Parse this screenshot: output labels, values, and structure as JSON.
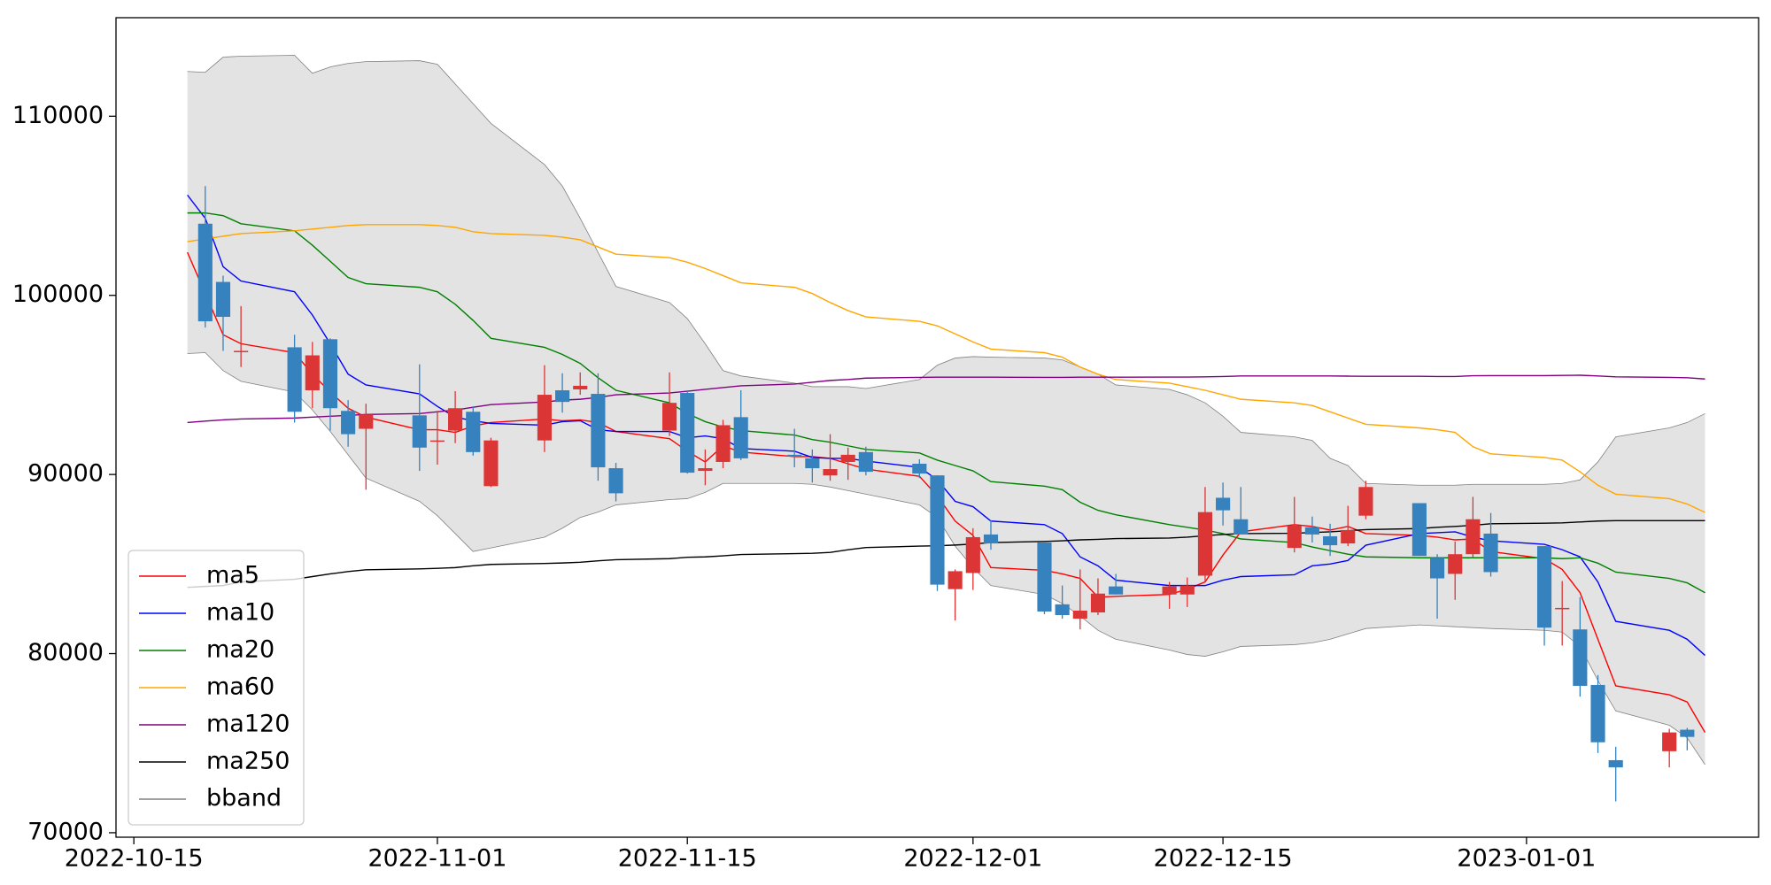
{
  "chart_data": {
    "type": "candlestick",
    "x": [
      "2022-10-18",
      "2022-10-19",
      "2022-10-20",
      "2022-10-21",
      "2022-10-24",
      "2022-10-25",
      "2022-10-26",
      "2022-10-27",
      "2022-10-28",
      "2022-10-31",
      "2022-11-01",
      "2022-11-02",
      "2022-11-03",
      "2022-11-04",
      "2022-11-07",
      "2022-11-08",
      "2022-11-09",
      "2022-11-10",
      "2022-11-11",
      "2022-11-14",
      "2022-11-15",
      "2022-11-16",
      "2022-11-17",
      "2022-11-18",
      "2022-11-21",
      "2022-11-22",
      "2022-11-23",
      "2022-11-24",
      "2022-11-25",
      "2022-11-28",
      "2022-11-29",
      "2022-11-30",
      "2022-12-01",
      "2022-12-02",
      "2022-12-05",
      "2022-12-06",
      "2022-12-07",
      "2022-12-08",
      "2022-12-09",
      "2022-12-12",
      "2022-12-13",
      "2022-12-14",
      "2022-12-15",
      "2022-12-16",
      "2022-12-19",
      "2022-12-20",
      "2022-12-21",
      "2022-12-22",
      "2022-12-23",
      "2022-12-26",
      "2022-12-27",
      "2022-12-28",
      "2022-12-29",
      "2022-12-30",
      "2023-01-02",
      "2023-01-03",
      "2023-01-04",
      "2023-01-05",
      "2023-01-06",
      "2023-01-09",
      "2023-01-10",
      "2023-01-11"
    ],
    "open": [
      null,
      104000,
      100750,
      96900,
      97100,
      94700,
      97550,
      93550,
      92550,
      93300,
      91900,
      92450,
      93500,
      89350,
      91900,
      94700,
      94750,
      94500,
      90350,
      92450,
      94550,
      90200,
      90700,
      93200,
      91100,
      90900,
      89950,
      90700,
      91250,
      90600,
      89950,
      83600,
      84500,
      86650,
      86200,
      82750,
      81950,
      82300,
      83750,
      83300,
      83300,
      84350,
      88700,
      87500,
      85900,
      87050,
      86550,
      86150,
      87700,
      88400,
      85350,
      84450,
      85550,
      86700,
      86000,
      82550,
      81350,
      78250,
      74050,
      74550,
      75750,
      null
    ],
    "high": [
      null,
      106100,
      101100,
      99400,
      97800,
      97400,
      97600,
      94150,
      93950,
      96150,
      93550,
      94650,
      93800,
      92050,
      96100,
      95650,
      95700,
      95650,
      90650,
      95700,
      94700,
      91400,
      93050,
      94700,
      92550,
      91400,
      92250,
      91500,
      91550,
      90850,
      89950,
      84700,
      87000,
      87450,
      86250,
      83800,
      84700,
      84200,
      84450,
      84000,
      84250,
      89300,
      89550,
      89300,
      88750,
      87650,
      87250,
      88250,
      89650,
      88400,
      85550,
      86250,
      88750,
      87850,
      86000,
      84050,
      83150,
      78800,
      74800,
      75800,
      75850,
      null
    ],
    "low": [
      null,
      98200,
      96900,
      96000,
      92900,
      93700,
      92450,
      91550,
      89150,
      90200,
      90550,
      91750,
      91050,
      89300,
      91250,
      93450,
      94450,
      89650,
      88500,
      92150,
      90050,
      89400,
      90350,
      90800,
      90400,
      89550,
      89650,
      89700,
      89950,
      89800,
      83500,
      81850,
      83550,
      85800,
      82200,
      81950,
      81350,
      82150,
      83300,
      82500,
      82600,
      84050,
      87150,
      86650,
      85650,
      86200,
      85450,
      86000,
      87500,
      85450,
      81950,
      83000,
      85350,
      84300,
      80450,
      80450,
      77600,
      74450,
      71750,
      73650,
      74600,
      null
    ],
    "close": [
      null,
      98550,
      98800,
      96900,
      93500,
      96650,
      93700,
      92250,
      93350,
      91500,
      91900,
      93700,
      91250,
      91900,
      94450,
      94050,
      94950,
      90400,
      88950,
      94000,
      90100,
      90350,
      92750,
      90900,
      91000,
      90350,
      90300,
      91100,
      90150,
      90050,
      83850,
      84600,
      86500,
      86150,
      82350,
      82150,
      82400,
      83350,
      83300,
      83750,
      83800,
      87900,
      88000,
      86650,
      87150,
      86650,
      86050,
      86900,
      89300,
      85450,
      84200,
      85550,
      87500,
      84550,
      81450,
      82550,
      78200,
      75050,
      73650,
      75600,
      75350,
      null
    ],
    "up_color": "#dc3535",
    "down_color": "#3582be",
    "series": [
      {
        "name": "ma5",
        "color": "#ff0000",
        "values": [
          102400,
          100100,
          97800,
          97300,
          96800,
          95600,
          94600,
          93700,
          93200,
          92500,
          92500,
          92350,
          92700,
          92900,
          93100,
          93000,
          93050,
          92900,
          92400,
          92000,
          91300,
          90700,
          91600,
          91250,
          91000,
          91000,
          90900,
          90600,
          90300,
          89900,
          88800,
          87400,
          86600,
          84800,
          84650,
          84450,
          84200,
          83150,
          83200,
          83300,
          83600,
          84000,
          85500,
          86800,
          87200,
          87100,
          86900,
          87100,
          86700,
          86600,
          86500,
          86350,
          86400,
          85700,
          85300,
          84700,
          83400,
          80800,
          78200,
          77700,
          77300,
          75600
        ]
      },
      {
        "name": "ma10",
        "color": "#0000ff",
        "values": [
          105600,
          104300,
          101600,
          100800,
          100200,
          98900,
          97300,
          95600,
          95000,
          94500,
          93800,
          93200,
          93000,
          92850,
          92750,
          92950,
          93000,
          92500,
          92400,
          92400,
          92050,
          92150,
          92000,
          91450,
          91300,
          90950,
          90900,
          90900,
          90750,
          90400,
          89700,
          88500,
          88200,
          87400,
          87200,
          86700,
          85400,
          84900,
          84100,
          83800,
          83800,
          83800,
          84100,
          84300,
          84400,
          84900,
          85000,
          85200,
          86050,
          86700,
          86750,
          86800,
          86500,
          86300,
          86100,
          85800,
          85400,
          84000,
          81800,
          81300,
          80800,
          79900
        ]
      },
      {
        "name": "ma20",
        "color": "#008000",
        "values": [
          104600,
          104600,
          104450,
          104000,
          103600,
          102800,
          101900,
          101000,
          100650,
          100450,
          100200,
          99500,
          98600,
          97600,
          97100,
          96700,
          96200,
          95400,
          94700,
          94000,
          93400,
          92950,
          92650,
          92450,
          92200,
          91950,
          91800,
          91600,
          91400,
          91200,
          90800,
          90500,
          90200,
          89600,
          89350,
          89150,
          88450,
          88000,
          87750,
          87200,
          87050,
          86900,
          86700,
          86400,
          86200,
          85950,
          85750,
          85550,
          85400,
          85350,
          85350,
          85350,
          85350,
          85350,
          85350,
          85300,
          85350,
          85050,
          84550,
          84200,
          83950,
          83400
        ]
      },
      {
        "name": "ma60",
        "color": "#ffa500",
        "values": [
          103000,
          103150,
          103300,
          103450,
          103600,
          103700,
          103800,
          103900,
          103950,
          103950,
          103900,
          103800,
          103550,
          103450,
          103350,
          103250,
          103100,
          102700,
          102300,
          102100,
          101850,
          101500,
          101100,
          100700,
          100450,
          100100,
          99600,
          99150,
          98800,
          98550,
          98300,
          97850,
          97400,
          97000,
          96800,
          96550,
          96000,
          95600,
          95300,
          95100,
          94900,
          94700,
          94450,
          94200,
          94000,
          93850,
          93500,
          93150,
          92800,
          92600,
          92500,
          92350,
          91550,
          91150,
          90950,
          90800,
          90150,
          89400,
          88900,
          88650,
          88350,
          87880
        ]
      },
      {
        "name": "ma120",
        "color": "#800080",
        "values": [
          92900,
          92980,
          93050,
          93100,
          93150,
          93200,
          93250,
          93300,
          93350,
          93400,
          93500,
          93600,
          93750,
          93900,
          94050,
          94150,
          94200,
          94300,
          94450,
          94550,
          94650,
          94750,
          94850,
          94950,
          95050,
          95150,
          95250,
          95300,
          95380,
          95420,
          95430,
          95430,
          95430,
          95430,
          95420,
          95420,
          95430,
          95430,
          95430,
          95440,
          95440,
          95450,
          95470,
          95500,
          95500,
          95500,
          95500,
          95490,
          95480,
          95480,
          95470,
          95470,
          95510,
          95520,
          95520,
          95530,
          95540,
          95500,
          95450,
          95420,
          95400,
          95330
        ]
      },
      {
        "name": "ma250",
        "color": "#000000",
        "values": [
          83700,
          83750,
          83800,
          84000,
          84150,
          84300,
          84450,
          84580,
          84680,
          84730,
          84760,
          84800,
          84900,
          84980,
          85030,
          85060,
          85100,
          85180,
          85240,
          85300,
          85380,
          85400,
          85460,
          85530,
          85580,
          85600,
          85650,
          85800,
          85920,
          86000,
          86020,
          86060,
          86120,
          86200,
          86260,
          86300,
          86350,
          86380,
          86420,
          86450,
          86500,
          86580,
          86650,
          86700,
          86720,
          86760,
          86800,
          86860,
          86920,
          86980,
          87050,
          87100,
          87160,
          87250,
          87280,
          87300,
          87350,
          87400,
          87420,
          87420,
          87420,
          87420
        ]
      }
    ],
    "bband": {
      "name": "bband",
      "color": "#808080",
      "fill": "#e3e3e3",
      "upper": [
        112500,
        112450,
        113300,
        113350,
        113400,
        112400,
        112750,
        112950,
        113050,
        113100,
        112900,
        111800,
        110700,
        109600,
        107300,
        106100,
        104300,
        102400,
        100500,
        99600,
        98700,
        97300,
        95800,
        95500,
        95100,
        94900,
        94900,
        94900,
        94800,
        95300,
        96100,
        96500,
        96580,
        96550,
        96500,
        96400,
        96000,
        95600,
        95000,
        94750,
        94450,
        94000,
        93250,
        92350,
        92100,
        91900,
        90900,
        90500,
        89500,
        89400,
        89400,
        89400,
        89450,
        89450,
        89450,
        89500,
        89700,
        90700,
        92100,
        92600,
        92900,
        93400
      ],
      "lower": [
        96750,
        96800,
        95800,
        95200,
        94600,
        93600,
        92400,
        91100,
        89800,
        88500,
        87700,
        86700,
        85700,
        85900,
        86500,
        87000,
        87600,
        87900,
        88300,
        88600,
        88650,
        89000,
        89500,
        89500,
        89500,
        89450,
        89300,
        89100,
        88900,
        88300,
        87600,
        86000,
        84800,
        83800,
        83300,
        82800,
        82100,
        81300,
        80800,
        80200,
        79950,
        79850,
        80100,
        80400,
        80500,
        80600,
        80800,
        81100,
        81400,
        81600,
        81550,
        81500,
        81450,
        81400,
        81300,
        81200,
        80400,
        78500,
        76800,
        76000,
        75300,
        73800
      ]
    },
    "xlim": [
      "2022-10-14",
      "2023-01-14"
    ],
    "xticks": [
      "2022-10-15",
      "2022-11-01",
      "2022-11-15",
      "2022-12-01",
      "2022-12-15",
      "2023-01-01"
    ],
    "ylim": [
      69750,
      115500
    ],
    "yticks": [
      70000,
      80000,
      90000,
      100000,
      110000
    ],
    "legend": "lower left"
  }
}
